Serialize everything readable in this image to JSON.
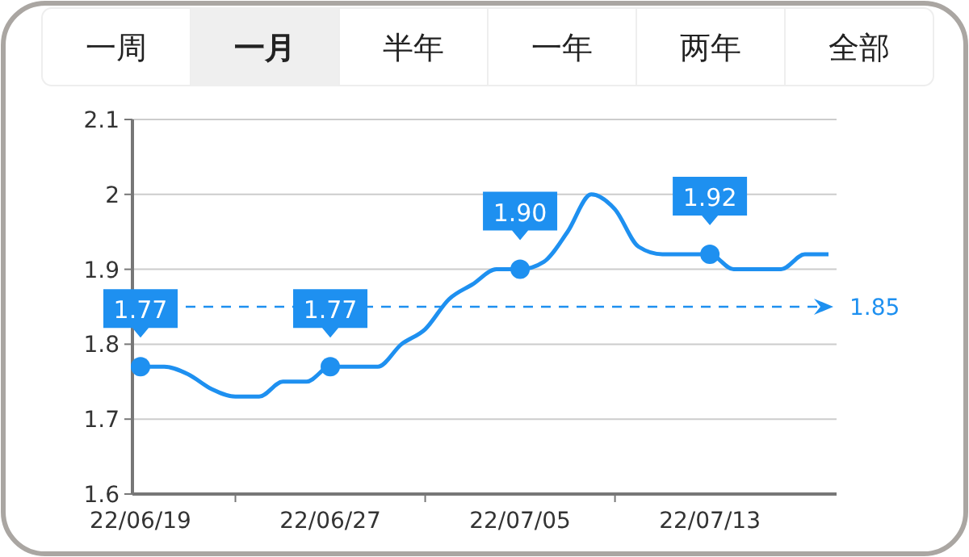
{
  "chart_data": {
    "type": "line",
    "categories": [
      "22/06/19",
      null,
      null,
      null,
      null,
      null,
      null,
      null,
      "22/06/27",
      null,
      null,
      null,
      null,
      null,
      null,
      null,
      "22/07/05",
      null,
      null,
      null,
      null,
      null,
      null,
      null,
      "22/07/13",
      null,
      null,
      null,
      null,
      null
    ],
    "series": [
      {
        "color": "#1e90f0",
        "values": [
          1.77,
          1.77,
          1.76,
          1.74,
          1.73,
          1.73,
          1.75,
          1.75,
          1.77,
          1.77,
          1.77,
          1.8,
          1.82,
          1.86,
          1.88,
          1.9,
          1.9,
          1.91,
          1.95,
          2.0,
          1.98,
          1.93,
          1.92,
          1.92,
          1.92,
          1.9,
          1.9,
          1.9,
          1.92,
          1.92
        ]
      }
    ],
    "ylim": [
      1.6,
      2.1
    ],
    "yticks": [
      1.6,
      1.7,
      1.8,
      1.9,
      {
        "value": 2,
        "label": "2"
      },
      2.1
    ],
    "grid": "y",
    "marker": "none",
    "line_style": "solid",
    "ref_lines": [
      {
        "axis": "y",
        "value": 1.85,
        "label": "1.85",
        "color": "#1e90f0",
        "line_style": "dashed"
      }
    ],
    "annotations": [
      {
        "text": "1.77",
        "x": "22/06/19",
        "y": 1.77
      },
      {
        "text": "1.77",
        "x": "22/06/27",
        "y": 1.77
      },
      {
        "text": "1.90",
        "x": "22/07/05",
        "y": 1.9
      },
      {
        "text": "1.92",
        "x": "22/07/13",
        "y": 1.92
      },
      "一周",
      "一月",
      "半年",
      "一年",
      "两年",
      "全部"
    ]
  }
}
